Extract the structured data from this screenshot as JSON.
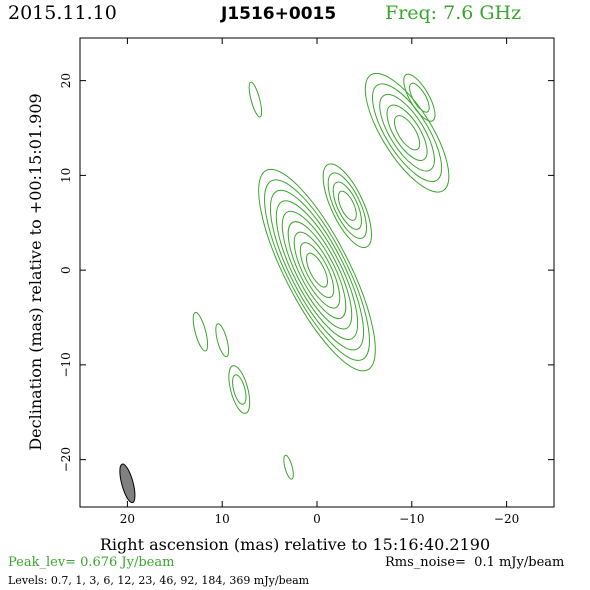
{
  "header": {
    "date": "2015.11.10",
    "source": "J1516+0015",
    "freq_label": "Freq: 7.6 GHz"
  },
  "chart_data": {
    "type": "contour",
    "xlabel": "Right ascension (mas) relative to 15:16:40.2190",
    "ylabel": "Declination (mas) relative to +00:15:01.909",
    "xlim": [
      25,
      -25
    ],
    "ylim": [
      -25,
      24.5
    ],
    "x_ticks": [
      20,
      10,
      0,
      -10,
      -20
    ],
    "x_tick_labels": [
      "20",
      "10",
      "0",
      "−10",
      "−20"
    ],
    "y_ticks": [
      20,
      10,
      0,
      -10,
      -20
    ],
    "y_tick_labels": [
      "20",
      "10",
      "0",
      "−10",
      "−20"
    ],
    "contour_color": "#3aa52c",
    "components": [
      {
        "x": 0,
        "y": 0,
        "semi_major": 11.8,
        "semi_minor": 3.4,
        "pa_deg": 27,
        "n_contours": 9
      },
      {
        "x": -3.2,
        "y": 6.8,
        "semi_major": 4.8,
        "semi_minor": 1.7,
        "pa_deg": 25,
        "n_contours": 4
      },
      {
        "x": -9.5,
        "y": 14.5,
        "semi_major": 7.2,
        "semi_minor": 2.6,
        "pa_deg": 32,
        "n_contours": 5
      },
      {
        "x": -10.8,
        "y": 18.2,
        "semi_major": 2.8,
        "semi_minor": 1.0,
        "pa_deg": 30,
        "n_contours": 2
      },
      {
        "x": 6.5,
        "y": 18.0,
        "semi_major": 1.9,
        "semi_minor": 0.45,
        "pa_deg": 15,
        "n_contours": 1
      },
      {
        "x": 12.3,
        "y": -6.5,
        "semi_major": 2.1,
        "semi_minor": 0.55,
        "pa_deg": 15,
        "n_contours": 1
      },
      {
        "x": 10.0,
        "y": -7.4,
        "semi_major": 1.8,
        "semi_minor": 0.5,
        "pa_deg": 15,
        "n_contours": 1
      },
      {
        "x": 8.2,
        "y": -12.6,
        "semi_major": 2.6,
        "semi_minor": 0.9,
        "pa_deg": 15,
        "n_contours": 2
      },
      {
        "x": 3.0,
        "y": -20.8,
        "semi_major": 1.3,
        "semi_minor": 0.38,
        "pa_deg": 15,
        "n_contours": 1
      }
    ],
    "beam": {
      "x": 20.0,
      "y": -22.5,
      "semi_major": 2.1,
      "semi_minor": 0.6,
      "pa_deg": 15,
      "fill": "#808080"
    }
  },
  "footer": {
    "peak_label": "Peak_lev=",
    "peak_value": "0.676 Jy/beam",
    "rms_label": "Rms_noise=",
    "rms_value": "0.1 mJy/beam",
    "levels_text": "Levels: 0.7,    1,    3,    6,   12,   23,   46,   92, 184, 369 mJy/beam"
  }
}
